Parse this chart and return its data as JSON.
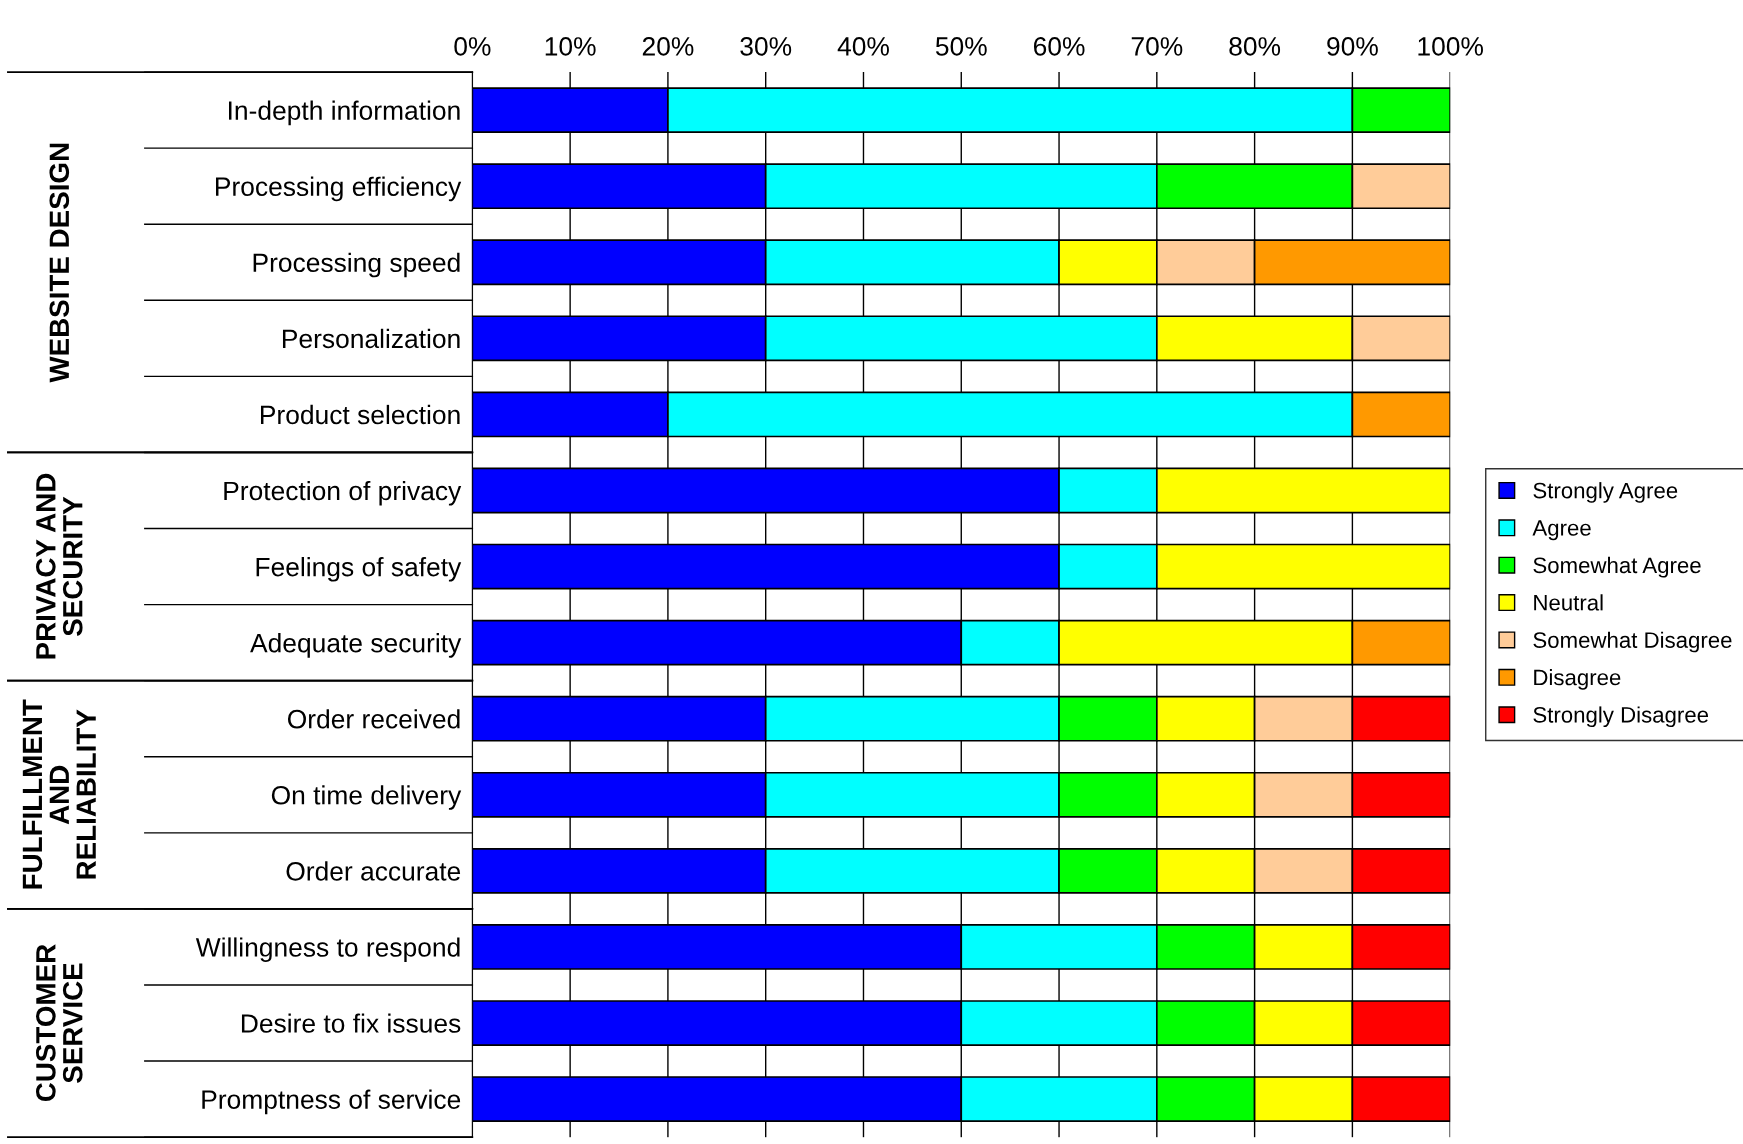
{
  "chart_data": {
    "type": "bar",
    "orientation": "horizontal",
    "stacked": true,
    "categories": [
      "In-depth information",
      "Processing efficiency",
      "Processing speed",
      "Personalization",
      "Product selection",
      "Protection of privacy",
      "Feelings of safety",
      "Adequate security",
      "Order received",
      "On time delivery",
      "Order accurate",
      "Willingness to respond",
      "Desire to fix issues",
      "Promptness of service"
    ],
    "series": [
      {
        "name": "Strongly Agree",
        "color": "#0000ff",
        "values": [
          20,
          30,
          30,
          30,
          20,
          60,
          60,
          50,
          30,
          30,
          30,
          50,
          50,
          50
        ]
      },
      {
        "name": "Agree",
        "color": "#00ffff",
        "values": [
          70,
          40,
          30,
          40,
          70,
          10,
          10,
          10,
          30,
          30,
          30,
          20,
          20,
          20
        ]
      },
      {
        "name": "Somewhat Agree",
        "color": "#00ff00",
        "values": [
          10,
          20,
          null,
          null,
          null,
          null,
          null,
          null,
          10,
          10,
          10,
          10,
          10,
          10
        ]
      },
      {
        "name": "Neutral",
        "color": "#ffff00",
        "values": [
          null,
          null,
          10,
          20,
          null,
          30,
          30,
          30,
          10,
          10,
          10,
          10,
          10,
          10
        ]
      },
      {
        "name": "Somewhat Disagree",
        "color": "#ffcc99",
        "values": [
          null,
          10,
          10,
          10,
          null,
          null,
          null,
          null,
          10,
          10,
          10,
          null,
          null,
          null
        ]
      },
      {
        "name": "Disagree",
        "color": "#ff9900",
        "values": [
          null,
          null,
          20,
          null,
          10,
          null,
          null,
          10,
          null,
          null,
          null,
          null,
          null,
          null
        ]
      },
      {
        "name": "Strongly Disagree",
        "color": "#ff0000",
        "values": [
          null,
          null,
          null,
          null,
          null,
          null,
          null,
          null,
          10,
          10,
          10,
          10,
          10,
          10
        ]
      }
    ],
    "xlim": [
      0,
      100
    ],
    "xticks": [
      {
        "value": 0,
        "label": "0%"
      },
      {
        "value": 10,
        "label": "10%"
      },
      {
        "value": 20,
        "label": "20%"
      },
      {
        "value": 30,
        "label": "30%"
      },
      {
        "value": 40,
        "label": "40%"
      },
      {
        "value": 50,
        "label": "50%"
      },
      {
        "value": 60,
        "label": "60%"
      },
      {
        "value": 70,
        "label": "70%"
      },
      {
        "value": 80,
        "label": "80%"
      },
      {
        "value": 90,
        "label": "90%"
      },
      {
        "value": 100,
        "label": "100%"
      }
    ],
    "annotations": [
      "WEBSITE DESIGN",
      "PRIVACY AND\nSECURITY",
      "FULFILLMENT\nAND\nRELIABILITY",
      "CUSTOMER\nSERVICE"
    ],
    "grid": "x",
    "legend": "right"
  }
}
